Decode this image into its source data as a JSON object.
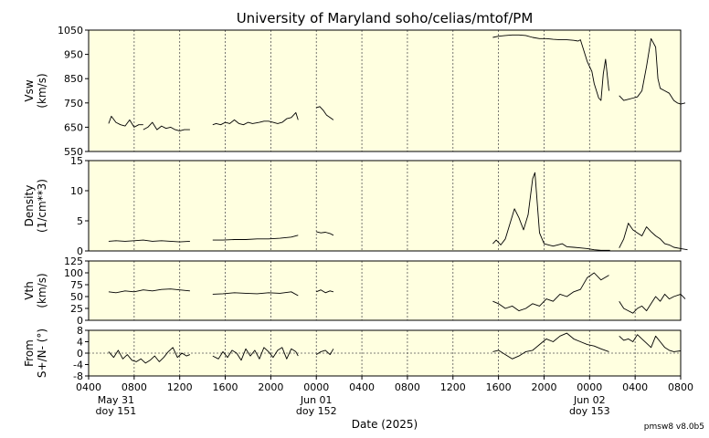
{
  "chart_data": {
    "type": "line",
    "title": "University of Maryland  soho/celias/mtof/PM",
    "xlabel": "Date (2025)",
    "version": "pmsw8 v8.0b5",
    "colors": {
      "panel_bg": "#ffffe0",
      "line": "#000000",
      "grid": "#555555"
    },
    "x_ticks": [
      "0400",
      "0800",
      "1200",
      "1600",
      "2000",
      "0000",
      "0400",
      "0800",
      "1200",
      "1600",
      "2000",
      "0000",
      "0400",
      "0800"
    ],
    "date_labels": [
      {
        "tick_index": 0.6,
        "date": "May 31",
        "doy": "doy 151"
      },
      {
        "tick_index": 5,
        "date": "Jun 01",
        "doy": "doy 152"
      },
      {
        "tick_index": 11,
        "date": "Jun 02",
        "doy": "doy 153"
      }
    ],
    "panels": [
      {
        "ylabel": [
          "Vsw",
          "(km/s)"
        ],
        "ylim": [
          550,
          1050
        ],
        "yticks": [
          "1050",
          "950",
          "850",
          "750",
          "650",
          "550"
        ],
        "zero_line": false,
        "series": [
          {
            "x": [
              0.88,
              1.0,
              1.2,
              1.4,
              1.6,
              1.8,
              2.0,
              2.2,
              2.4
            ],
            "y": [
              665,
              695,
              670,
              660,
              655,
              680,
              650,
              660,
              660
            ]
          },
          {
            "x": [
              2.4,
              2.6,
              2.8,
              3.0,
              3.2,
              3.4,
              3.6,
              3.8,
              4.0,
              4.2,
              4.45
            ],
            "y": [
              640,
              650,
              670,
              640,
              655,
              645,
              650,
              640,
              635,
              640,
              640
            ]
          },
          {
            "x": [
              5.45,
              5.6,
              5.8,
              6.0,
              6.2,
              6.4,
              6.6,
              6.8,
              7.0,
              7.2,
              7.5
            ],
            "y": [
              660,
              665,
              660,
              670,
              665,
              680,
              665,
              660,
              670,
              665,
              670
            ]
          },
          {
            "x": [
              7.5,
              7.7,
              7.9,
              8.1,
              8.3,
              8.5,
              8.7,
              8.9,
              9.1,
              9.2
            ],
            "y": [
              670,
              675,
              675,
              670,
              665,
              670,
              685,
              690,
              710,
              680
            ]
          },
          {
            "x": [
              10.0,
              10.15,
              10.3,
              10.45,
              10.6,
              10.75
            ],
            "y": [
              730,
              735,
              720,
              700,
              690,
              680
            ]
          },
          {
            "x": [
              17.75,
              18.0,
              18.3,
              18.6,
              18.9,
              19.2,
              19.5,
              19.8,
              20.1,
              20.4,
              20.7,
              21.0,
              21.3,
              21.5
            ],
            "y": [
              1020,
              1025,
              1028,
              1030,
              1030,
              1028,
              1020,
              1015,
              1015,
              1012,
              1010,
              1010,
              1008,
              1005
            ]
          },
          {
            "x": [
              21.5,
              21.6,
              21.7,
              21.8,
              21.9,
              22.0,
              22.1,
              22.2,
              22.3,
              22.4,
              22.5,
              22.6,
              22.7,
              22.85
            ],
            "y": [
              1005,
              1010,
              980,
              950,
              920,
              900,
              880,
              830,
              800,
              770,
              760,
              870,
              930,
              800
            ]
          },
          {
            "x": [
              23.3,
              23.5,
              23.7,
              23.9,
              24.1,
              24.3,
              24.5,
              24.7,
              24.9,
              25.0,
              25.1,
              25.3,
              25.5,
              25.7,
              25.85,
              26.0,
              26.2
            ],
            "y": [
              780,
              760,
              765,
              770,
              775,
              800,
              900,
              1015,
              980,
              850,
              810,
              800,
              790,
              760,
              750,
              745,
              750
            ]
          }
        ]
      },
      {
        "ylabel": [
          "Density",
          "(1/cm**3)"
        ],
        "ylim": [
          0,
          15
        ],
        "yticks": [
          "15",
          "10",
          "5",
          "0"
        ],
        "zero_line": false,
        "series": [
          {
            "x": [
              0.88,
              1.2,
              1.6,
              2.0,
              2.4,
              2.8,
              3.2,
              3.6,
              4.0,
              4.45
            ],
            "y": [
              1.6,
              1.7,
              1.6,
              1.7,
              1.8,
              1.6,
              1.7,
              1.6,
              1.5,
              1.6
            ]
          },
          {
            "x": [
              5.45,
              5.9,
              6.4,
              6.9,
              7.4,
              7.9,
              8.4,
              8.9,
              9.2
            ],
            "y": [
              1.8,
              1.8,
              1.9,
              1.9,
              2.0,
              2.0,
              2.1,
              2.3,
              2.6
            ]
          },
          {
            "x": [
              10.0,
              10.2,
              10.4,
              10.6,
              10.75
            ],
            "y": [
              3.2,
              3.0,
              3.1,
              2.9,
              2.6
            ]
          },
          {
            "x": [
              17.75,
              17.9,
              18.1,
              18.3,
              18.5,
              18.7,
              18.9,
              19.1,
              19.3,
              19.5,
              19.6,
              19.8,
              20.0,
              20.2,
              20.4,
              20.6,
              20.8,
              21.0,
              21.3,
              21.6,
              21.9,
              22.2,
              22.5,
              22.9
            ],
            "y": [
              1.2,
              1.8,
              1.0,
              2.0,
              4.5,
              7.0,
              5.5,
              3.5,
              6.0,
              12.0,
              13.0,
              3.0,
              1.2,
              1.0,
              0.8,
              1.0,
              1.2,
              0.7,
              0.6,
              0.5,
              0.4,
              0.2,
              0.1,
              0.1
            ]
          },
          {
            "x": [
              23.3,
              23.5,
              23.7,
              23.9,
              24.1,
              24.3,
              24.5,
              24.7,
              24.9,
              25.1,
              25.3,
              25.5,
              25.7,
              26.0,
              26.3
            ],
            "y": [
              0.5,
              2.0,
              4.6,
              3.5,
              3.0,
              2.5,
              4.0,
              3.2,
              2.5,
              2.0,
              1.2,
              1.0,
              0.6,
              0.4,
              0.2
            ]
          }
        ]
      },
      {
        "ylabel": [
          "Vth",
          "(km/s)"
        ],
        "ylim": [
          0,
          125
        ],
        "yticks": [
          "125",
          "100",
          "75",
          "50",
          "25",
          "0"
        ],
        "zero_line": false,
        "series": [
          {
            "x": [
              0.88,
              1.2,
              1.6,
              2.0,
              2.4,
              2.8,
              3.2,
              3.6,
              4.0,
              4.45
            ],
            "y": [
              60,
              58,
              62,
              60,
              64,
              62,
              65,
              66,
              64,
              62
            ]
          },
          {
            "x": [
              5.45,
              5.9,
              6.4,
              6.9,
              7.4,
              7.9,
              8.4,
              8.9,
              9.2
            ],
            "y": [
              55,
              56,
              58,
              57,
              56,
              58,
              57,
              60,
              52
            ]
          },
          {
            "x": [
              10.0,
              10.2,
              10.4,
              10.6,
              10.75
            ],
            "y": [
              60,
              64,
              58,
              62,
              60
            ]
          },
          {
            "x": [
              17.75,
              18.0,
              18.3,
              18.6,
              18.9,
              19.2,
              19.5,
              19.8,
              20.1,
              20.4,
              20.7,
              21.0,
              21.3,
              21.6,
              21.9,
              22.2,
              22.5,
              22.85
            ],
            "y": [
              40,
              35,
              25,
              30,
              20,
              25,
              35,
              30,
              45,
              40,
              55,
              50,
              60,
              65,
              90,
              100,
              85,
              95
            ]
          },
          {
            "x": [
              23.3,
              23.5,
              23.7,
              23.9,
              24.1,
              24.3,
              24.5,
              24.7,
              24.9,
              25.1,
              25.3,
              25.5,
              25.7,
              26.0,
              26.2
            ],
            "y": [
              40,
              25,
              20,
              15,
              25,
              30,
              20,
              35,
              50,
              40,
              55,
              45,
              50,
              55,
              45
            ]
          }
        ]
      },
      {
        "ylabel": [
          "From",
          "S+/N- (°)"
        ],
        "ylim": [
          -8,
          8
        ],
        "yticks": [
          "8",
          "4",
          "0",
          "-4",
          "-8"
        ],
        "zero_line": true,
        "series": [
          {
            "x": [
              0.88,
              1.1,
              1.3,
              1.5,
              1.7,
              1.9,
              2.1,
              2.3,
              2.5,
              2.7,
              2.9,
              3.1,
              3.3,
              3.5,
              3.7,
              3.9,
              4.1,
              4.3,
              4.45
            ],
            "y": [
              0.5,
              -1.5,
              1.0,
              -2.0,
              -0.5,
              -2.5,
              -3.0,
              -2.0,
              -3.5,
              -2.5,
              -1.0,
              -3.0,
              -1.5,
              0.5,
              2.0,
              -1.5,
              0.0,
              -1.0,
              -0.5
            ]
          },
          {
            "x": [
              5.45,
              5.7,
              5.9,
              6.1,
              6.3,
              6.5,
              6.7,
              6.9,
              7.1,
              7.3,
              7.5,
              7.7,
              7.9,
              8.1,
              8.3,
              8.5,
              8.7,
              8.9,
              9.1,
              9.2
            ],
            "y": [
              -1.0,
              -2.0,
              0.5,
              -1.5,
              1.0,
              0.0,
              -2.5,
              1.5,
              -1.0,
              1.0,
              -2.0,
              2.0,
              0.5,
              -1.5,
              1.0,
              2.0,
              -2.0,
              1.5,
              0.5,
              -1.0
            ]
          },
          {
            "x": [
              10.0,
              10.2,
              10.4,
              10.6,
              10.75
            ],
            "y": [
              -0.5,
              0.5,
              1.0,
              -0.5,
              1.5
            ]
          },
          {
            "x": [
              17.75,
              18.0,
              18.3,
              18.6,
              18.9,
              19.2,
              19.5,
              19.8,
              20.1,
              20.4,
              20.7,
              21.0,
              21.3,
              21.6,
              21.9,
              22.2,
              22.5,
              22.85
            ],
            "y": [
              0.5,
              1.0,
              -0.5,
              -2.0,
              -1.0,
              0.5,
              1.0,
              3.0,
              5.0,
              4.0,
              6.0,
              7.0,
              5.0,
              4.0,
              3.0,
              2.5,
              1.5,
              0.5
            ]
          },
          {
            "x": [
              23.3,
              23.5,
              23.7,
              23.9,
              24.1,
              24.3,
              24.5,
              24.7,
              24.9,
              25.1,
              25.3,
              25.5,
              25.7,
              26.0
            ],
            "y": [
              6.0,
              4.5,
              5.0,
              4.0,
              6.5,
              5.0,
              3.5,
              2.0,
              6.0,
              4.0,
              2.0,
              1.0,
              0.5,
              0.8
            ]
          }
        ]
      }
    ]
  }
}
